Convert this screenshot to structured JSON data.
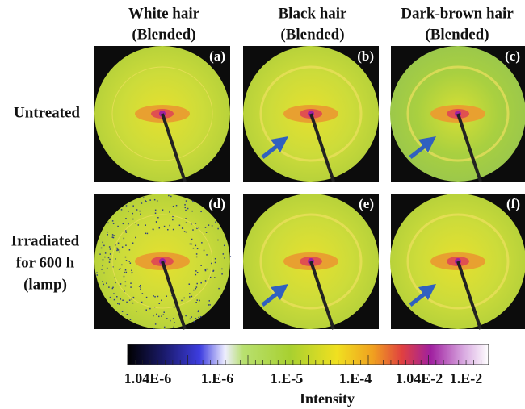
{
  "columns": [
    {
      "title": "White hair",
      "subtitle": "(Blended)"
    },
    {
      "title": "Black hair",
      "subtitle": "(Blended)"
    },
    {
      "title": "Dark-brown hair",
      "subtitle": "(Blended)"
    }
  ],
  "rows": [
    {
      "label_lines": [
        "Untreated"
      ]
    },
    {
      "label_lines": [
        "Irradiated",
        "for 600 h",
        "(lamp)"
      ]
    }
  ],
  "panels": [
    "(a)",
    "(b)",
    "(c)",
    "(d)",
    "(e)",
    "(f)"
  ],
  "colorbar": {
    "ticks": [
      "1.04E-6",
      "1.E-6",
      "1.E-5",
      "1.E-4",
      "1.04E-2",
      "1.E-2"
    ],
    "title": "Intensity"
  }
}
